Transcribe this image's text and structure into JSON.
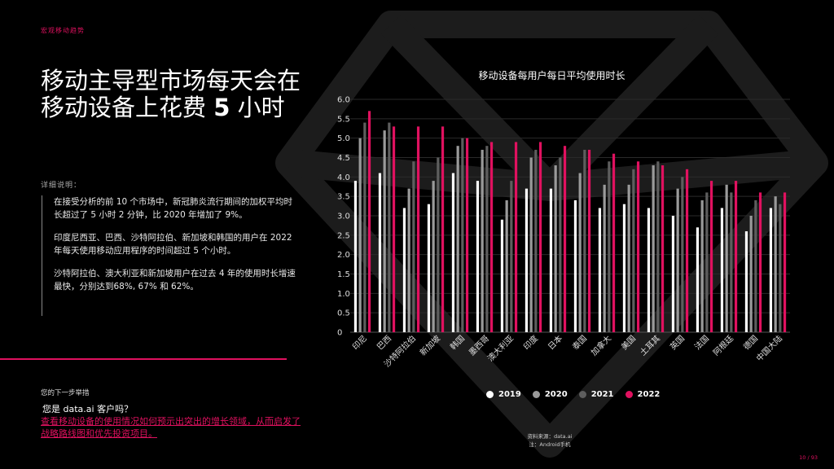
{
  "header": {
    "section_label": "宏观移动趋势"
  },
  "headline": {
    "part1": "移动主导型市场每天会在移动设备上花费 ",
    "bold": "5",
    "part2": " 小时"
  },
  "details": {
    "label": "详细说明：",
    "paragraphs": [
      "在接受分析的前 10 个市场中，新冠肺炎流行期间的加权平均时长超过了 5 小时 2 分钟，比 2020 年增加了 9%。",
      "印度尼西亚、巴西、沙特阿拉伯、新加坡和韩国的用户在 2022 年每天使用移动应用程序的时间超过 5 个小时。",
      "沙特阿拉伯、澳大利亚和新加坡用户在过去 4 年的使用时长增速最快，分别达到68%, 67% 和 62%。"
    ]
  },
  "next_steps": {
    "label": "您的下一步举措",
    "question": "您是 data.ai 客户吗？",
    "link": "查看移动设备的使用情况如何预示出突出的增长领域，从而启发了战略路线图和优先投资项目。"
  },
  "footer": {
    "source": "资料来源：data.ai",
    "note": "注：Android手机",
    "page": "10 / 93"
  },
  "colors": {
    "accent": "#e0115f",
    "y2019": "#ffffff",
    "y2020": "#9a9a9a",
    "y2021": "#5e5e5e",
    "y2022": "#e0115f"
  },
  "chart_data": {
    "type": "bar",
    "title": "移动设备每用户每日平均使用时长",
    "categories": [
      "印尼",
      "巴西",
      "沙特阿拉伯",
      "新加坡",
      "韩国",
      "墨西哥",
      "澳大利亚",
      "印度",
      "日本",
      "泰国",
      "加拿大",
      "美国",
      "土耳其",
      "英国",
      "法国",
      "阿根廷",
      "德国",
      "中国大陆"
    ],
    "series": [
      {
        "name": "2019",
        "values": [
          3.9,
          4.1,
          3.2,
          3.3,
          4.1,
          3.9,
          2.9,
          3.7,
          3.7,
          3.4,
          3.2,
          3.3,
          3.2,
          3.0,
          2.7,
          3.2,
          2.6,
          3.2
        ]
      },
      {
        "name": "2020",
        "values": [
          5.0,
          5.2,
          3.7,
          3.9,
          4.8,
          4.7,
          3.4,
          4.5,
          4.3,
          4.1,
          3.8,
          3.8,
          4.3,
          3.7,
          3.4,
          3.8,
          3.0,
          3.5
        ]
      },
      {
        "name": "2021",
        "values": [
          5.4,
          5.4,
          4.4,
          4.5,
          5.0,
          4.8,
          3.9,
          4.7,
          4.5,
          4.7,
          4.4,
          4.2,
          4.4,
          4.0,
          3.6,
          3.6,
          3.4,
          3.3
        ]
      },
      {
        "name": "2022",
        "values": [
          5.7,
          5.3,
          5.3,
          5.3,
          5.0,
          4.9,
          4.9,
          4.9,
          4.8,
          4.7,
          4.6,
          4.4,
          4.3,
          4.2,
          3.9,
          3.9,
          3.6,
          3.6
        ]
      }
    ],
    "ylim": [
      0,
      6.0
    ],
    "yticks": [
      "0",
      "0.5",
      "1.0",
      "1.5",
      "2.0",
      "2.5",
      "3.0",
      "3.5",
      "4.0",
      "4.5",
      "5.0",
      "5.5",
      "6.0"
    ],
    "grid": true,
    "legend": "bottom"
  }
}
